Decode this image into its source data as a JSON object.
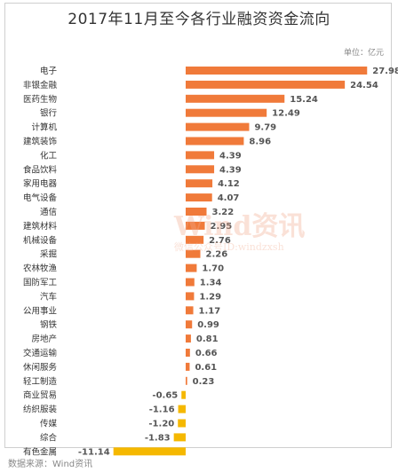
{
  "title": "2017年11月至今各行业融资资金流向",
  "unit_label": "单位：亿元",
  "source": "数据来源：Wind资讯",
  "watermark": {
    "main": "Wind资讯",
    "sub": "微信公众号ID:windzxsh"
  },
  "colors": {
    "positive": "#f07a3a",
    "negative": "#f5b800",
    "label": "#333333"
  },
  "chart_data": {
    "type": "bar",
    "orientation": "horizontal",
    "title": "2017年11月至今各行业融资资金流向",
    "unit": "单位：亿元",
    "categories": [
      "电子",
      "非银金融",
      "医药生物",
      "银行",
      "计算机",
      "建筑装饰",
      "化工",
      "食品饮料",
      "家用电器",
      "电气设备",
      "通信",
      "建筑材料",
      "机械设备",
      "采掘",
      "农林牧渔",
      "国防军工",
      "汽车",
      "公用事业",
      "钢铁",
      "房地产",
      "交通运输",
      "休闲服务",
      "轻工制造",
      "商业贸易",
      "纺织服装",
      "传媒",
      "综合",
      "有色金属"
    ],
    "values": [
      27.98,
      24.54,
      15.24,
      12.49,
      9.79,
      8.96,
      4.39,
      4.39,
      4.12,
      4.07,
      3.22,
      2.95,
      2.76,
      2.26,
      1.7,
      1.34,
      1.29,
      1.17,
      0.99,
      0.81,
      0.66,
      0.61,
      0.23,
      -0.65,
      -1.16,
      -1.2,
      -1.83,
      -11.14
    ],
    "value_labels": [
      "27.98",
      "24.54",
      "15.24",
      "12.49",
      "9.79",
      "8.96",
      "4.39",
      "4.39",
      "4.12",
      "4.07",
      "3.22",
      "2.95",
      "2.76",
      "2.26",
      "1.70",
      "1.34",
      "1.29",
      "1.17",
      "0.99",
      "0.81",
      "0.66",
      "0.61",
      "0.23",
      "-0.65",
      "-1.16",
      "-1.20",
      "-1.83",
      "-11.14"
    ],
    "grid": false,
    "legend": "none"
  }
}
